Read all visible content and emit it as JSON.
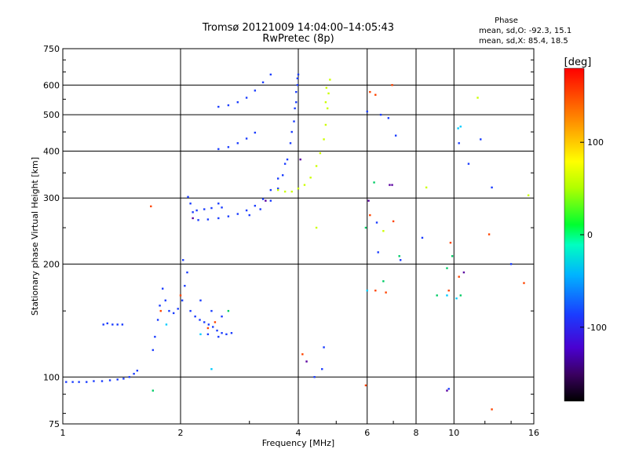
{
  "chart_data": {
    "type": "scatter",
    "title": "Tromsø 20121009 14:04:00–14:05:43",
    "subtitle": "RwPretec (8p)",
    "xlabel": "Frequency [MHz]",
    "ylabel": "Stationary phase Virtual Height [km]",
    "x_scale": "log2",
    "y_scale": "log",
    "xlim": [
      1,
      16
    ],
    "ylim": [
      75,
      750
    ],
    "x_ticks": [
      1,
      2,
      4,
      6,
      8,
      10,
      16
    ],
    "x_tick_labels": [
      "1",
      "2",
      "4",
      "6",
      "8",
      "10",
      "16"
    ],
    "y_ticks": [
      75,
      100,
      200,
      300,
      400,
      500,
      600,
      750
    ],
    "y_tick_labels": [
      "75",
      "100",
      "200",
      "300",
      "400",
      "500",
      "600",
      "750"
    ],
    "grid": true,
    "phase_stats": {
      "title": "Phase",
      "line_o": "mean, sd,O: -92.3, 15.1",
      "line_x": "mean, sd,X:  85.4, 18.5"
    },
    "colorbar": {
      "label": "[deg]",
      "range": [
        -180,
        180
      ],
      "tick_values": [
        100,
        0,
        -100
      ],
      "tick_labels": [
        "100",
        "0",
        "-100"
      ]
    },
    "series": [
      {
        "name": "",
        "color": "#1a3cff",
        "points": [
          [
            1.02,
            97
          ],
          [
            1.06,
            97
          ],
          [
            1.1,
            97
          ],
          [
            1.15,
            97
          ],
          [
            1.2,
            97.5
          ],
          [
            1.26,
            97.5
          ],
          [
            1.32,
            98
          ],
          [
            1.38,
            98.5
          ],
          [
            1.43,
            99
          ],
          [
            1.48,
            100
          ],
          [
            1.52,
            102
          ],
          [
            1.55,
            104
          ],
          [
            1.27,
            138
          ],
          [
            1.3,
            139
          ],
          [
            1.34,
            138
          ],
          [
            1.38,
            138
          ],
          [
            1.42,
            138
          ],
          [
            1.7,
            118
          ],
          [
            1.72,
            128
          ],
          [
            1.75,
            142
          ],
          [
            1.77,
            155
          ],
          [
            1.8,
            172
          ],
          [
            1.83,
            160
          ],
          [
            1.87,
            150
          ],
          [
            1.92,
            148
          ],
          [
            1.97,
            152
          ],
          [
            2.02,
            160
          ],
          [
            2.05,
            175
          ],
          [
            2.08,
            190
          ],
          [
            2.03,
            205
          ],
          [
            2.12,
            150
          ],
          [
            2.18,
            145
          ],
          [
            2.24,
            142
          ],
          [
            2.3,
            140
          ],
          [
            2.36,
            138
          ],
          [
            2.42,
            136
          ],
          [
            2.48,
            133
          ],
          [
            2.55,
            131
          ],
          [
            2.62,
            130
          ],
          [
            2.7,
            131
          ],
          [
            2.25,
            160
          ],
          [
            2.4,
            150
          ],
          [
            2.55,
            145
          ],
          [
            2.35,
            130
          ],
          [
            2.5,
            128
          ],
          [
            2.09,
            302
          ],
          [
            2.12,
            290
          ],
          [
            2.15,
            275
          ],
          [
            2.2,
            278
          ],
          [
            2.3,
            280
          ],
          [
            2.4,
            282
          ],
          [
            2.5,
            290
          ],
          [
            2.55,
            283
          ],
          [
            2.22,
            262
          ],
          [
            2.35,
            263
          ],
          [
            2.5,
            265
          ],
          [
            2.65,
            268
          ],
          [
            2.8,
            272
          ],
          [
            2.95,
            278
          ],
          [
            3.1,
            286
          ],
          [
            3.25,
            298
          ],
          [
            3.4,
            315
          ],
          [
            3.55,
            338
          ],
          [
            3.7,
            370
          ],
          [
            3.82,
            420
          ],
          [
            3.9,
            480
          ],
          [
            3.95,
            540
          ],
          [
            3.98,
            600
          ],
          [
            4.0,
            640
          ],
          [
            2.5,
            405
          ],
          [
            2.65,
            410
          ],
          [
            2.8,
            420
          ],
          [
            2.95,
            432
          ],
          [
            3.1,
            448
          ],
          [
            2.5,
            525
          ],
          [
            2.65,
            530
          ],
          [
            2.8,
            540
          ],
          [
            2.95,
            555
          ],
          [
            3.1,
            580
          ],
          [
            3.25,
            610
          ],
          [
            3.4,
            640
          ],
          [
            3.0,
            270
          ],
          [
            3.2,
            280
          ],
          [
            3.4,
            295
          ],
          [
            3.55,
            318
          ],
          [
            3.65,
            345
          ],
          [
            3.75,
            380
          ],
          [
            3.85,
            450
          ],
          [
            3.92,
            520
          ],
          [
            3.95,
            575
          ],
          [
            3.98,
            625
          ],
          [
            4.4,
            100.0
          ],
          [
            4.6,
            105
          ],
          [
            4.65,
            120
          ],
          [
            6.0,
            510
          ],
          [
            6.35,
            258
          ],
          [
            6.5,
            500
          ],
          [
            7.1,
            440
          ],
          [
            7.3,
            205
          ],
          [
            8.3,
            235
          ],
          [
            10.3,
            420
          ],
          [
            10.9,
            370
          ],
          [
            11.7,
            430
          ],
          [
            14.0,
            200
          ],
          [
            12.5,
            320
          ],
          [
            9.7,
            93
          ],
          [
            6.8,
            490
          ],
          [
            6.4,
            215
          ]
        ]
      },
      {
        "name": "",
        "color": "#ccff00",
        "points": [
          [
            3.55,
            315
          ],
          [
            3.7,
            312
          ],
          [
            3.85,
            312
          ],
          [
            4.0,
            318
          ],
          [
            4.15,
            325
          ],
          [
            4.3,
            340
          ],
          [
            4.45,
            365
          ],
          [
            4.55,
            395
          ],
          [
            4.65,
            430
          ],
          [
            4.7,
            470
          ],
          [
            4.75,
            520
          ],
          [
            4.78,
            570
          ],
          [
            4.82,
            620
          ],
          [
            4.7,
            540
          ],
          [
            4.72,
            590
          ],
          [
            6.6,
            245
          ],
          [
            8.5,
            320
          ],
          [
            11.5,
            555
          ],
          [
            15.5,
            305
          ],
          [
            4.45,
            250
          ]
        ]
      },
      {
        "name": "",
        "color": "#ff4400",
        "points": [
          [
            1.68,
            285
          ],
          [
            6.1,
            575
          ],
          [
            6.3,
            565
          ],
          [
            7.0,
            260
          ],
          [
            6.1,
            270
          ],
          [
            6.3,
            170
          ],
          [
            6.7,
            168
          ],
          [
            10.3,
            185
          ],
          [
            12.3,
            240
          ],
          [
            12.5,
            82
          ],
          [
            9.8,
            228
          ],
          [
            9.7,
            170
          ],
          [
            2.0,
            165
          ],
          [
            2.45,
            140
          ],
          [
            1.78,
            150
          ],
          [
            4.1,
            115
          ],
          [
            15.1,
            178
          ],
          [
            6.95,
            600
          ],
          [
            5.95,
            95
          ],
          [
            2.35,
            135
          ]
        ]
      },
      {
        "name": "",
        "color": "#00cc66",
        "points": [
          [
            1.7,
            92
          ],
          [
            7.25,
            210
          ],
          [
            9.9,
            210
          ],
          [
            9.6,
            195
          ],
          [
            10.4,
            165
          ],
          [
            9.05,
            165
          ],
          [
            6.25,
            330
          ],
          [
            2.65,
            150
          ],
          [
            5.95,
            250
          ],
          [
            6.6,
            180
          ]
        ]
      },
      {
        "name": "",
        "color": "#00ccff",
        "points": [
          [
            6.0,
            170
          ],
          [
            10.4,
            465
          ],
          [
            10.25,
            460
          ],
          [
            9.6,
            165
          ],
          [
            10.15,
            162
          ],
          [
            2.4,
            105
          ],
          [
            2.25,
            130
          ],
          [
            1.84,
            138
          ]
        ]
      },
      {
        "name": "",
        "color": "#5a00a0",
        "points": [
          [
            4.05,
            380
          ],
          [
            6.85,
            325
          ],
          [
            6.95,
            325
          ],
          [
            4.2,
            110
          ],
          [
            9.6,
            92
          ],
          [
            10.6,
            190
          ],
          [
            6.05,
            295
          ],
          [
            2.15,
            265
          ],
          [
            3.3,
            295
          ]
        ]
      }
    ]
  }
}
